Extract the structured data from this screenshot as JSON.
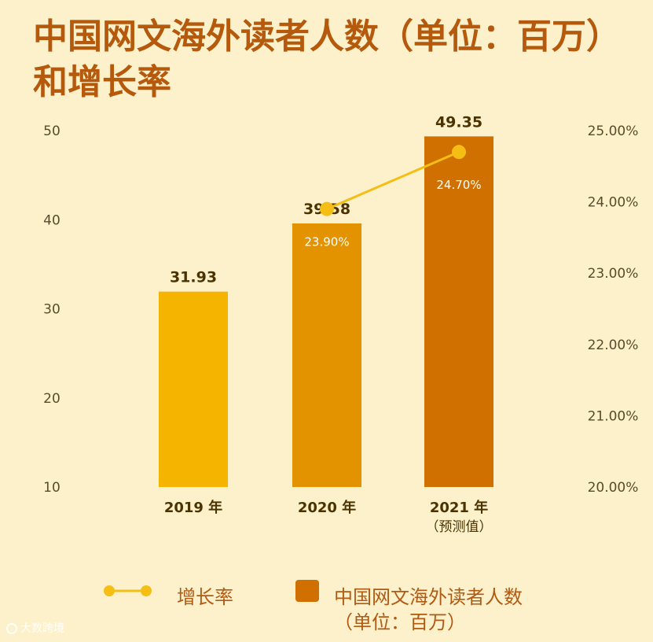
{
  "title_line1": "中国网文海外读者人数（单位：百万）",
  "title_line2": "和增长率",
  "chart_data": {
    "type": "bar",
    "categories": [
      "2019 年",
      "2020 年",
      "2021 年"
    ],
    "category_notes": [
      "",
      "",
      "（预测值）"
    ],
    "series": [
      {
        "name": "中国网文海外读者人数（单位：百万）",
        "type": "bar",
        "values": [
          31.93,
          39.58,
          49.35
        ],
        "value_labels": [
          "31.93",
          "39.58",
          "49.35"
        ],
        "colors": [
          "#f4b400",
          "#e39200",
          "#cf7000"
        ]
      },
      {
        "name": "增长率",
        "type": "line",
        "axis": "right",
        "values": [
          null,
          23.9,
          24.7
        ],
        "value_labels": [
          "",
          "23.90%",
          "24.70%"
        ],
        "color": "#f4be14"
      }
    ],
    "y_left": {
      "ylim": [
        10,
        50
      ],
      "ticks": [
        "10",
        "20",
        "30",
        "40",
        "50"
      ]
    },
    "y_right": {
      "ylim": [
        20,
        25
      ],
      "ticks": [
        "20.00%",
        "21.00%",
        "22.00%",
        "23.00%",
        "24.00%",
        "25.00%"
      ]
    },
    "legend": {
      "position": "bottom",
      "line_label": "增长率",
      "bar_label_line1": "中国网文海外读者人数",
      "bar_label_line2": "（单位：百万）"
    },
    "grid": false
  },
  "colors": {
    "background": "#fdf1cc",
    "title": "#b55a0c",
    "text": "#4a3300",
    "axis_text": "#5a4a2a"
  },
  "watermark": "大数跨境"
}
